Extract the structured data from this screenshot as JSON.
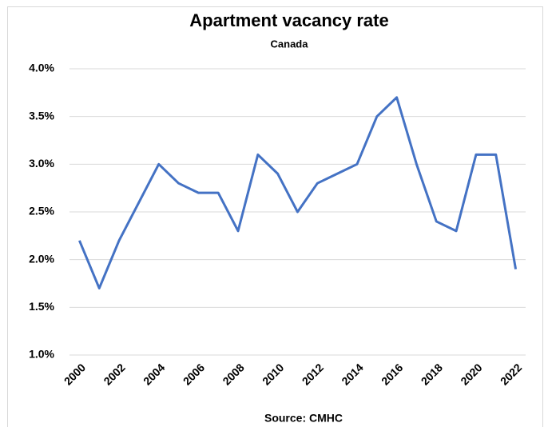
{
  "chart_data": {
    "type": "line",
    "title": "Apartment vacancy rate",
    "subtitle": "Canada",
    "source": "Source:  CMHC",
    "x": [
      2000,
      2001,
      2002,
      2003,
      2004,
      2005,
      2006,
      2007,
      2008,
      2009,
      2010,
      2011,
      2012,
      2013,
      2014,
      2015,
      2016,
      2017,
      2018,
      2019,
      2020,
      2021,
      2022
    ],
    "series": [
      {
        "name": "Vacancy rate",
        "color": "#4472c4",
        "values": [
          2.2,
          1.7,
          2.2,
          2.6,
          3.0,
          2.8,
          2.7,
          2.7,
          2.3,
          3.1,
          2.9,
          2.5,
          2.8,
          2.9,
          3.0,
          3.5,
          3.7,
          3.0,
          2.4,
          2.3,
          3.1,
          3.1,
          1.9
        ]
      }
    ],
    "xlim": [
      1999.5,
      2022.5
    ],
    "xticks": [
      2000,
      2002,
      2004,
      2006,
      2008,
      2010,
      2012,
      2014,
      2016,
      2018,
      2020,
      2022
    ],
    "ylim": [
      1,
      4
    ],
    "yticks": [
      {
        "value": 1,
        "label": "1.0%"
      },
      {
        "value": 1.5,
        "label": "1.5%"
      },
      {
        "value": 2,
        "label": "2.0%"
      },
      {
        "value": 2.5,
        "label": "2.5%"
      },
      {
        "value": 3,
        "label": "3.0%"
      },
      {
        "value": 3.5,
        "label": "3.5%"
      },
      {
        "value": 4,
        "label": "4.0%"
      }
    ],
    "grid": true
  }
}
